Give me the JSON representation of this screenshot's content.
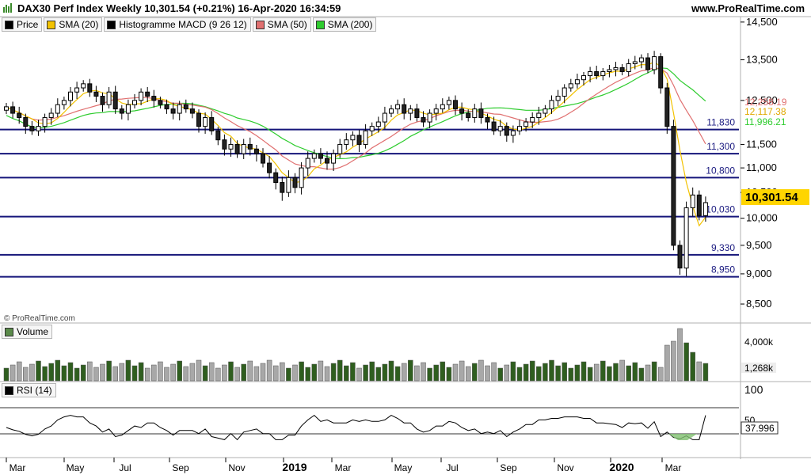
{
  "header": {
    "title": "DAX30 Perf Index Weekly 10,301.54 (+0.21%) 16-Apr-2020 16:34:59",
    "site": "www.ProRealTime.com",
    "watermark": "© ProRealTime.com"
  },
  "legend": [
    {
      "label": "Price",
      "color": "#000000"
    },
    {
      "label": "SMA (20)",
      "color": "#f2c200"
    },
    {
      "label": "Histogramme MACD (9 26 12)",
      "color": "#000000"
    },
    {
      "label": "SMA (50)",
      "color": "#e07070"
    },
    {
      "label": "SMA (200)",
      "color": "#2ecc2e"
    }
  ],
  "volume_panel": {
    "label": "Volume",
    "ticks": [
      "4,000k",
      "1,268k"
    ]
  },
  "rsi_panel": {
    "label": "RSI (14)",
    "ticks": [
      "100",
      "50"
    ],
    "current": "37.996"
  },
  "price_axis": {
    "ticks": [
      "14,500",
      "13,500",
      "12,500",
      "11,500",
      "11,000",
      "10,500",
      "10,000",
      "9,500",
      "9,000",
      "8,500"
    ]
  },
  "current_price": "10,301.54",
  "sma_labels": [
    {
      "text": "12,258.19",
      "color": "#e07070"
    },
    {
      "text": "12,117.38",
      "color": "#e0a800"
    },
    {
      "text": "11,996.21",
      "color": "#2ecc2e"
    }
  ],
  "levels": [
    "11,830",
    "11,300",
    "10,800",
    "10,030",
    "9,330",
    "8,950"
  ],
  "x_axis": [
    "Mar",
    "May",
    "Jul",
    "Sep",
    "Nov",
    "2019",
    "Mar",
    "May",
    "Jul",
    "Sep",
    "Nov",
    "2020",
    "Mar"
  ],
  "chart_data": {
    "type": "candlestick",
    "title": "DAX30 Perf Index Weekly",
    "ylim": [
      8200,
      14650
    ],
    "horizontal_levels": [
      11830,
      11300,
      10800,
      10030,
      9330,
      8950
    ],
    "last": 10301.54,
    "closes": [
      12350,
      12200,
      12100,
      11900,
      11800,
      11900,
      12100,
      12200,
      12400,
      12500,
      12700,
      12800,
      12900,
      12700,
      12600,
      12400,
      12700,
      12300,
      12200,
      12400,
      12500,
      12700,
      12600,
      12500,
      12400,
      12300,
      12200,
      12400,
      12300,
      12200,
      11900,
      12100,
      11800,
      11600,
      11400,
      11500,
      11300,
      11500,
      11400,
      11300,
      11100,
      10900,
      10700,
      10500,
      10800,
      10600,
      11000,
      11200,
      11300,
      11200,
      11100,
      11300,
      11500,
      11600,
      11700,
      11500,
      11800,
      11900,
      12000,
      12200,
      12300,
      12400,
      12200,
      12300,
      12100,
      12000,
      12200,
      12300,
      12400,
      12500,
      12300,
      12200,
      12100,
      12300,
      12100,
      12000,
      11800,
      11900,
      11700,
      11800,
      11900,
      12000,
      12100,
      12200,
      12300,
      12500,
      12600,
      12800,
      12900,
      13000,
      13100,
      13200,
      13100,
      13200,
      13250,
      13300,
      13200,
      13400,
      13450,
      13550,
      13250,
      13580,
      12800,
      11900,
      9500,
      9100,
      10200,
      10450,
      10050,
      10300
    ]
  }
}
